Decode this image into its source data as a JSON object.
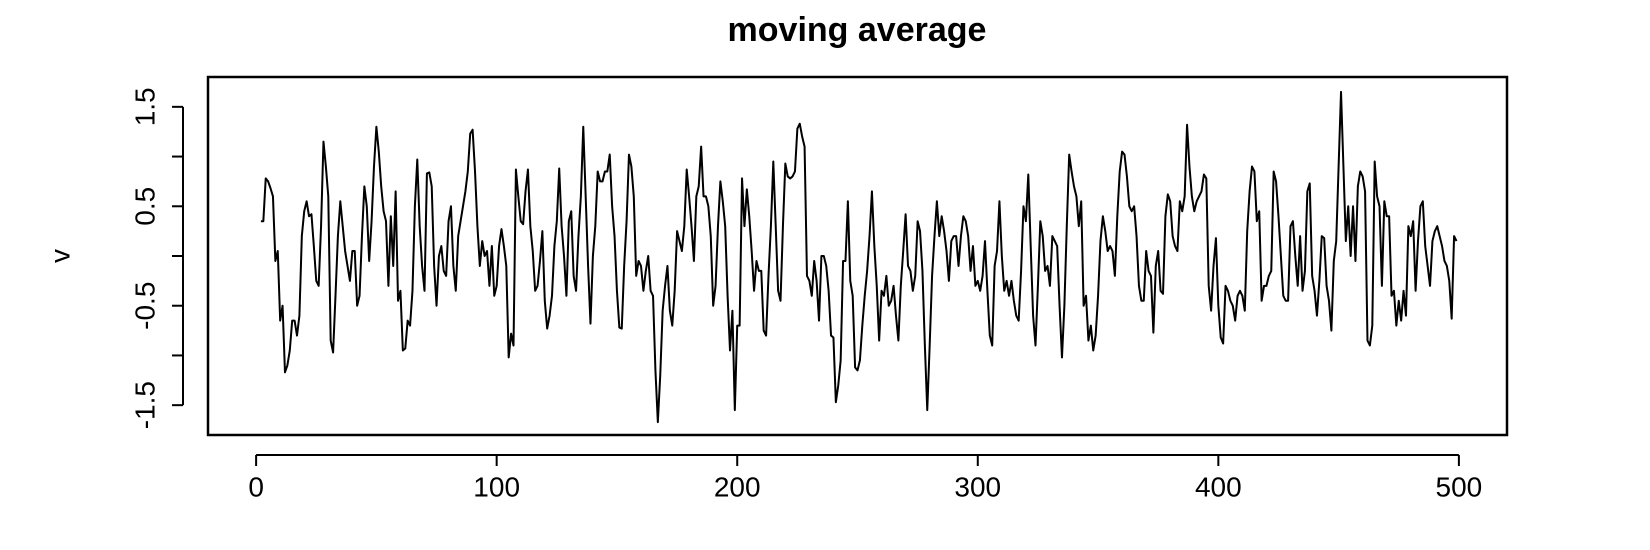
{
  "chart_data": {
    "type": "line",
    "title": "moving average",
    "ylabel": "v",
    "color": "#000000",
    "xlim": [
      -20,
      520
    ],
    "xticks": [
      0,
      100,
      200,
      300,
      400,
      500
    ],
    "ylim": [
      -1.8,
      1.8
    ],
    "yticks": [
      -1.5,
      {
        "value": -1,
        "label": null
      },
      -0.5,
      {
        "value": 0,
        "label": null
      },
      0.5,
      {
        "value": 1,
        "label": null
      },
      1.5
    ],
    "x": [
      2,
      3,
      4,
      5,
      6,
      7,
      8,
      9,
      10,
      11,
      12,
      13,
      14,
      15,
      16,
      17,
      18,
      19,
      20,
      21,
      22,
      23,
      24,
      25,
      26,
      27,
      28,
      29,
      30,
      31,
      32,
      33,
      34,
      35,
      36,
      37,
      38,
      39,
      40,
      41,
      42,
      43,
      44,
      45,
      46,
      47,
      48,
      49,
      50,
      51,
      52,
      53,
      54,
      55,
      56,
      57,
      58,
      59,
      60,
      61,
      62,
      63,
      64,
      65,
      66,
      67,
      68,
      69,
      70,
      71,
      72,
      73,
      74,
      75,
      76,
      77,
      78,
      79,
      80,
      81,
      82,
      83,
      84,
      85,
      86,
      87,
      88,
      89,
      90,
      91,
      92,
      93,
      94,
      95,
      96,
      97,
      98,
      99,
      100,
      101,
      102,
      103,
      104,
      105,
      106,
      107,
      108,
      109,
      110,
      111,
      112,
      113,
      114,
      115,
      116,
      117,
      118,
      119,
      120,
      121,
      122,
      123,
      124,
      125,
      126,
      127,
      128,
      129,
      130,
      131,
      132,
      133,
      134,
      135,
      136,
      137,
      138,
      139,
      140,
      141,
      142,
      143,
      144,
      145,
      146,
      147,
      148,
      149,
      150,
      151,
      152,
      153,
      154,
      155,
      156,
      157,
      158,
      159,
      160,
      161,
      162,
      163,
      164,
      165,
      166,
      167,
      168,
      169,
      170,
      171,
      172,
      173,
      174,
      175,
      176,
      177,
      178,
      179,
      180,
      181,
      182,
      183,
      184,
      185,
      186,
      187,
      188,
      189,
      190,
      191,
      192,
      193,
      194,
      195,
      196,
      197,
      198,
      199,
      200,
      201,
      202,
      203,
      204,
      205,
      206,
      207,
      208,
      209,
      210,
      211,
      212,
      213,
      214,
      215,
      216,
      217,
      218,
      219,
      220,
      221,
      222,
      223,
      224,
      225,
      226,
      227,
      228,
      229,
      230,
      231,
      232,
      233,
      234,
      235,
      236,
      237,
      238,
      239,
      240,
      241,
      242,
      243,
      244,
      245,
      246,
      247,
      248,
      249,
      250,
      251,
      252,
      253,
      254,
      255,
      256,
      257,
      258,
      259,
      260,
      261,
      262,
      263,
      264,
      265,
      266,
      267,
      268,
      269,
      270,
      271,
      272,
      273,
      274,
      275,
      276,
      277,
      278,
      279,
      280,
      281,
      282,
      283,
      284,
      285,
      286,
      287,
      288,
      289,
      290,
      291,
      292,
      293,
      294,
      295,
      296,
      297,
      298,
      299,
      300,
      301,
      302,
      303,
      304,
      305,
      306,
      307,
      308,
      309,
      310,
      311,
      312,
      313,
      314,
      315,
      316,
      317,
      318,
      319,
      320,
      321,
      322,
      323,
      324,
      325,
      326,
      327,
      328,
      329,
      330,
      331,
      332,
      333,
      334,
      335,
      336,
      337,
      338,
      339,
      340,
      341,
      342,
      343,
      344,
      345,
      346,
      347,
      348,
      349,
      350,
      351,
      352,
      353,
      354,
      355,
      356,
      357,
      358,
      359,
      360,
      361,
      362,
      363,
      364,
      365,
      366,
      367,
      368,
      369,
      370,
      371,
      372,
      373,
      374,
      375,
      376,
      377,
      378,
      379,
      380,
      381,
      382,
      383,
      384,
      385,
      386,
      387,
      388,
      389,
      390,
      391,
      392,
      393,
      394,
      395,
      396,
      397,
      398,
      399,
      400,
      401,
      402,
      403,
      404,
      405,
      406,
      407,
      408,
      409,
      410,
      411,
      412,
      413,
      414,
      415,
      416,
      417,
      418,
      419,
      420,
      421,
      422,
      423,
      424,
      425,
      426,
      427,
      428,
      429,
      430,
      431,
      432,
      433,
      434,
      435,
      436,
      437,
      438,
      439,
      440,
      441,
      442,
      443,
      444,
      445,
      446,
      447,
      448,
      449,
      450,
      451,
      452,
      453,
      454,
      455,
      456,
      457,
      458,
      459,
      460,
      461,
      462,
      463,
      464,
      465,
      466,
      467,
      468,
      469,
      470,
      471,
      472,
      473,
      474,
      475,
      476,
      477,
      478,
      479,
      480,
      481,
      482,
      483,
      484,
      485,
      486,
      487,
      488,
      489,
      490,
      491,
      492,
      493,
      494,
      495,
      496,
      497,
      498,
      499
    ],
    "values": [
      0.35,
      0.35,
      0.78,
      0.75,
      0.68,
      0.6,
      -0.05,
      0.05,
      -0.65,
      -0.5,
      -1.17,
      -1.1,
      -0.95,
      -0.65,
      -0.65,
      -0.8,
      -0.6,
      0.2,
      0.45,
      0.55,
      0.4,
      0.42,
      0.1,
      -0.25,
      -0.3,
      0.3,
      1.15,
      0.9,
      0.6,
      -0.85,
      -0.97,
      -0.4,
      0.2,
      0.55,
      0.3,
      0.05,
      -0.1,
      -0.25,
      0.05,
      0.05,
      -0.5,
      -0.4,
      0.2,
      0.7,
      0.5,
      -0.05,
      0.35,
      0.9,
      1.3,
      1.05,
      0.7,
      0.45,
      0.35,
      -0.3,
      0.4,
      -0.1,
      0.65,
      -0.45,
      -0.35,
      -0.95,
      -0.93,
      -0.65,
      -0.7,
      -0.35,
      0.5,
      0.97,
      0.3,
      -0.1,
      -0.35,
      0.83,
      0.84,
      0.7,
      -0.1,
      -0.5,
      0,
      0.1,
      -0.15,
      -0.2,
      0.35,
      0.5,
      -0.1,
      -0.35,
      0.2,
      0.35,
      0.5,
      0.65,
      0.85,
      1.23,
      1.27,
      0.85,
      0.3,
      -0.1,
      0.15,
      0,
      0.05,
      -0.3,
      0.1,
      -0.4,
      -0.3,
      0.1,
      0.27,
      0.1,
      -0.1,
      -1.02,
      -0.78,
      -0.9,
      0.87,
      0.6,
      0.35,
      0.32,
      0.65,
      0.87,
      0.3,
      0.05,
      -0.35,
      -0.3,
      -0.05,
      0.25,
      -0.45,
      -0.73,
      -0.6,
      -0.4,
      0.1,
      0.35,
      0.88,
      0.3,
      0,
      -0.4,
      0.35,
      0.45,
      -0.2,
      -0.35,
      0.2,
      0.6,
      1.3,
      0.6,
      -0.1,
      -0.68,
      0,
      0.3,
      0.85,
      0.75,
      0.75,
      0.85,
      0.85,
      1.02,
      0.5,
      0.2,
      -0.35,
      -0.72,
      -0.73,
      -0.1,
      0.35,
      1.02,
      0.9,
      0.6,
      -0.2,
      -0.05,
      -0.1,
      -0.35,
      -0.15,
      0,
      -0.35,
      -0.4,
      -1.15,
      -1.67,
      -1.2,
      -0.55,
      -0.3,
      -0.1,
      -0.55,
      -0.7,
      -0.35,
      0.25,
      0.15,
      0.05,
      0.3,
      0.87,
      0.6,
      0.3,
      -0.05,
      0.6,
      0.7,
      1.1,
      0.6,
      0.6,
      0.5,
      0.2,
      -0.5,
      -0.3,
      0.3,
      0.75,
      0.55,
      0.3,
      -0.4,
      -0.95,
      -0.55,
      -1.55,
      -0.7,
      -0.7,
      0.78,
      0.3,
      0.67,
      0.4,
      0.05,
      -0.35,
      -0.05,
      -0.15,
      -0.15,
      -0.75,
      -0.8,
      -0.2,
      0.3,
      0.95,
      0.3,
      -0.35,
      -0.45,
      0.3,
      0.93,
      0.8,
      0.78,
      0.8,
      0.85,
      1.28,
      1.33,
      1.2,
      1.1,
      -0.2,
      -0.25,
      -0.4,
      -0.05,
      -0.25,
      -0.65,
      0,
      0,
      -0.1,
      -0.35,
      -0.8,
      -0.82,
      -1.47,
      -1.3,
      -1.05,
      -0.05,
      -0.05,
      0.55,
      -0.25,
      -0.4,
      -1.12,
      -1.15,
      -1.05,
      -0.7,
      -0.4,
      -0.15,
      0.2,
      0.65,
      0.1,
      -0.3,
      -0.85,
      -0.35,
      -0.4,
      -0.2,
      -0.5,
      -0.45,
      -0.3,
      -0.6,
      -0.85,
      -0.3,
      0.05,
      0.42,
      -0.1,
      -0.15,
      -0.35,
      -0.2,
      0.35,
      0.25,
      -0.15,
      -0.9,
      -1.55,
      -0.9,
      -0.2,
      0.2,
      0.55,
      0.2,
      0.4,
      0.25,
      0.05,
      -0.25,
      0.15,
      0.2,
      0.2,
      -0.1,
      0.2,
      0.4,
      0.35,
      0.2,
      -0.15,
      0.1,
      -0.3,
      -0.25,
      -0.35,
      -0.2,
      0.15,
      -0.35,
      -0.8,
      -0.9,
      -0.1,
      0.05,
      0.55,
      0,
      -0.35,
      -0.25,
      -0.4,
      -0.25,
      -0.45,
      -0.6,
      -0.65,
      -0.15,
      0.5,
      0.35,
      0.82,
      0.1,
      -0.6,
      -0.9,
      -0.3,
      0.35,
      0.2,
      -0.15,
      -0.1,
      -0.3,
      0.2,
      0.15,
      0.1,
      -0.5,
      -1.02,
      -0.5,
      0.3,
      1.02,
      0.85,
      0.7,
      0.6,
      0.3,
      0.55,
      -0.5,
      -0.4,
      -0.85,
      -0.7,
      -0.95,
      -0.8,
      -0.4,
      0.15,
      0.4,
      0.25,
      0.05,
      0.1,
      0.05,
      -0.2,
      0.4,
      0.85,
      1.05,
      1.02,
      0.8,
      0.5,
      0.45,
      0.5,
      0.2,
      -0.3,
      -0.45,
      -0.45,
      0.05,
      -0.15,
      -0.2,
      -0.77,
      -0.1,
      0.05,
      -0.35,
      -0.38,
      0.4,
      0.62,
      0.55,
      0.2,
      0.1,
      0.05,
      0.55,
      0.45,
      0.6,
      1.32,
      0.9,
      0.6,
      0.45,
      0.55,
      0.6,
      0.65,
      0.82,
      0.78,
      -0.3,
      -0.55,
      -0.1,
      0.18,
      -0.5,
      -0.82,
      -0.88,
      -0.3,
      -0.35,
      -0.45,
      -0.5,
      -0.65,
      -0.4,
      -0.35,
      -0.4,
      -0.55,
      0.25,
      0.65,
      0.9,
      0.85,
      0.35,
      0.45,
      -0.45,
      -0.3,
      -0.3,
      -0.2,
      -0.15,
      0.85,
      0.75,
      0.4,
      0,
      -0.4,
      -0.45,
      -0.45,
      0.3,
      0.35,
      0,
      -0.3,
      0.2,
      -0.35,
      -0.15,
      0.65,
      0.73,
      -0.2,
      -0.35,
      -0.6,
      -0.25,
      0.2,
      0.18,
      -0.3,
      -0.45,
      -0.75,
      -0.05,
      0.15,
      0.9,
      1.65,
      0.9,
      0.15,
      0.5,
      0,
      0.5,
      -0.05,
      0.7,
      0.85,
      0.8,
      0.65,
      -0.85,
      -0.9,
      -0.7,
      0.95,
      0.6,
      0.5,
      -0.3,
      0.55,
      0.4,
      0.4,
      -0.4,
      -0.35,
      -0.7,
      -0.45,
      -0.65,
      -0.35,
      -0.6,
      0.3,
      0.2,
      0.35,
      -0.35,
      0.15,
      0.5,
      0.55,
      0.1,
      -0.1,
      -0.3,
      0.15,
      0.25,
      0.3,
      0.2,
      0.1,
      -0.05,
      -0.1,
      -0.25,
      -0.63,
      0.2,
      0.15
    ]
  }
}
